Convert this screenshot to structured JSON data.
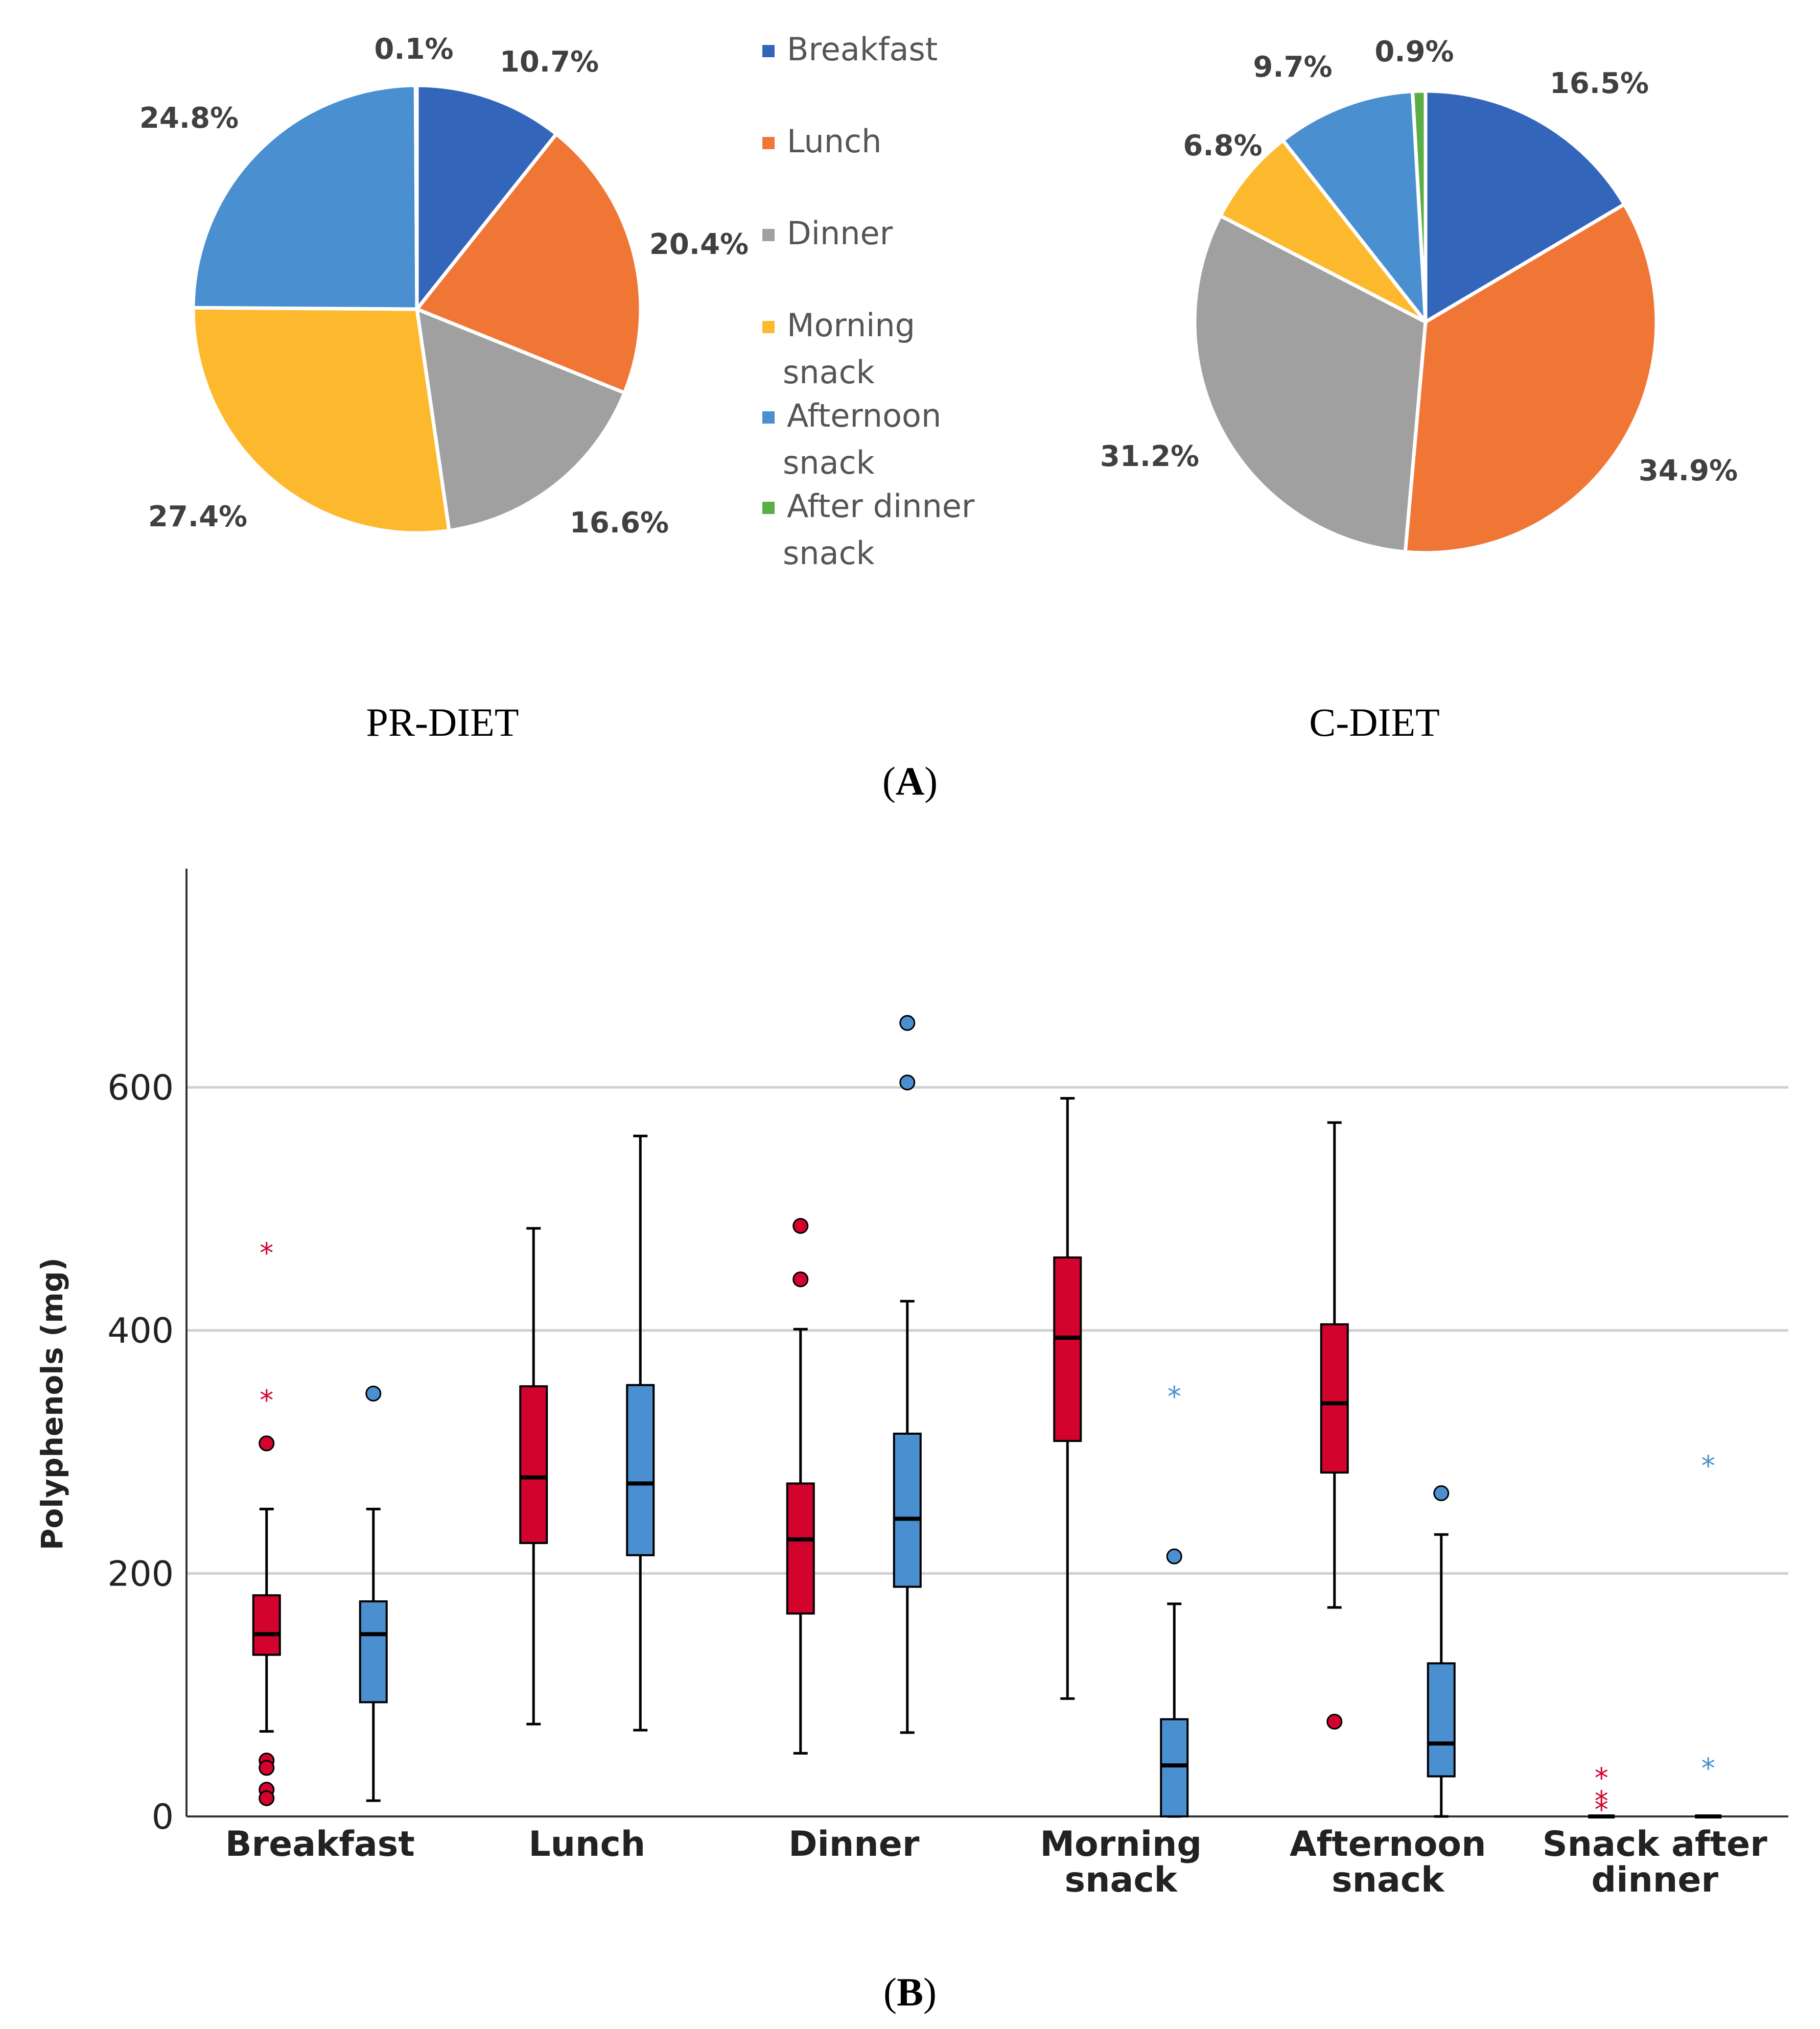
{
  "chart_data": [
    {
      "type": "pie",
      "panel": "A",
      "title": "PR-DIET",
      "slices": [
        {
          "label": "Breakfast",
          "value": 10.7,
          "label_text": "10.7%",
          "color": "#3366BB"
        },
        {
          "label": "Lunch",
          "value": 20.4,
          "label_text": "20.4%",
          "color": "#F07636"
        },
        {
          "label": "Dinner",
          "value": 16.6,
          "label_text": "16.6%",
          "color": "#A0A0A0"
        },
        {
          "label": "Morning snack",
          "value": 27.4,
          "label_text": "27.4%",
          "color": "#FDB92E"
        },
        {
          "label": "Afternoon snack",
          "value": 24.8,
          "label_text": "24.8%",
          "color": "#4A8FD0"
        },
        {
          "label": "After dinner snack",
          "value": 0.1,
          "label_text": "0.1%",
          "color": "#5BAE46"
        }
      ]
    },
    {
      "type": "pie",
      "panel": "A",
      "title": "C-DIET",
      "slices": [
        {
          "label": "Breakfast",
          "value": 16.5,
          "label_text": "16.5%",
          "color": "#3366BB"
        },
        {
          "label": "Lunch",
          "value": 34.9,
          "label_text": "34.9%",
          "color": "#F07636"
        },
        {
          "label": "Dinner",
          "value": 31.2,
          "label_text": "31.2%",
          "color": "#A0A0A0"
        },
        {
          "label": "Morning snack",
          "value": 6.8,
          "label_text": "6.8%",
          "color": "#FDB92E"
        },
        {
          "label": "Afternoon snack",
          "value": 9.7,
          "label_text": "9.7%",
          "color": "#4A8FD0"
        },
        {
          "label": "After dinner snack",
          "value": 0.9,
          "label_text": "0.9%",
          "color": "#5BAE46"
        }
      ]
    },
    {
      "type": "boxplot",
      "panel": "B",
      "ylabel": "Polyphenols (mg)",
      "xlabel": "",
      "ylim": [
        0,
        780
      ],
      "yticks": [
        0,
        200,
        400,
        600
      ],
      "grid": true,
      "categories": [
        "Breakfast",
        "Lunch",
        "Dinner",
        "Morning snack",
        "Afternoon snack",
        "Snack after dinner"
      ],
      "category_lines": [
        [
          "Breakfast"
        ],
        [
          "Lunch"
        ],
        [
          "Dinner"
        ],
        [
          "Morning",
          "snack"
        ],
        [
          "Afternoon",
          "snack"
        ],
        [
          "Snack after",
          "dinner"
        ]
      ],
      "series": [
        {
          "name": "PR-DIET",
          "color": "#D2042D",
          "boxes": [
            {
              "whislo": 70,
              "q1": 133,
              "med": 150,
              "q3": 182,
              "whishi": 253,
              "outliers": [
                307,
                46,
                40,
                22,
                15
              ],
              "extremes": [
                465,
                344
              ]
            },
            {
              "whislo": 76,
              "q1": 225,
              "med": 279,
              "q3": 354,
              "whishi": 484,
              "outliers": [],
              "extremes": []
            },
            {
              "whislo": 52,
              "q1": 167,
              "med": 228,
              "q3": 274,
              "whishi": 401,
              "outliers": [
                486,
                442
              ],
              "extremes": []
            },
            {
              "whislo": 97,
              "q1": 309,
              "med": 394,
              "q3": 460,
              "whishi": 591,
              "outliers": [],
              "extremes": []
            },
            {
              "whislo": 172,
              "q1": 283,
              "med": 340,
              "q3": 405,
              "whishi": 571,
              "outliers": [
                78
              ],
              "extremes": []
            },
            {
              "whislo": 0,
              "q1": 0,
              "med": 0,
              "q3": 0,
              "whishi": 0,
              "outliers": [],
              "extremes": [
                33,
                14,
                7
              ]
            }
          ]
        },
        {
          "name": "C-DIET",
          "color": "#4A8FD0",
          "boxes": [
            {
              "whislo": 13,
              "q1": 94,
              "med": 150,
              "q3": 177,
              "whishi": 253,
              "outliers": [
                348
              ],
              "extremes": []
            },
            {
              "whislo": 71,
              "q1": 215,
              "med": 274,
              "q3": 355,
              "whishi": 560,
              "outliers": [],
              "extremes": []
            },
            {
              "whislo": 69,
              "q1": 189,
              "med": 245,
              "q3": 315,
              "whishi": 424,
              "outliers": [
                653,
                604
              ],
              "extremes": []
            },
            {
              "whislo": 0,
              "q1": 0,
              "med": 42,
              "q3": 80,
              "whishi": 175,
              "outliers": [
                214
              ],
              "extremes": [
                347
              ]
            },
            {
              "whislo": 0,
              "q1": 33,
              "med": 60,
              "q3": 126,
              "whishi": 232,
              "outliers": [
                266
              ],
              "extremes": []
            },
            {
              "whislo": 0,
              "q1": 0,
              "med": 0,
              "q3": 0,
              "whishi": 0,
              "outliers": [],
              "extremes": [
                290,
                41
              ]
            }
          ]
        }
      ]
    }
  ],
  "captions": {
    "panel_a": "A",
    "panel_b": "B"
  }
}
